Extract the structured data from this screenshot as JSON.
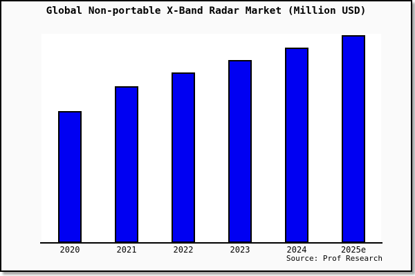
{
  "source": "Source: Prof Research",
  "colors": {
    "bar_fill": "#0000f2",
    "bar_border": "#000000",
    "plot_background": "#ffffff",
    "card_background": "#fafafa",
    "axis": "#000000",
    "text": "#000000"
  },
  "chart_data": {
    "type": "bar",
    "title": "Global Non-portable X-Band Radar Market (Million USD)",
    "categories": [
      "2020",
      "2021",
      "2022",
      "2023",
      "2024",
      "2025e"
    ],
    "values": [
      63,
      75,
      81.5,
      87.5,
      93.5,
      99.5
    ],
    "values_note": "No y-axis tick labels are shown in the chart; values are estimated relative bar heights on a 0-100 scale (2025e tallest, nearly touching plot top).",
    "xlabel": "",
    "ylabel": "",
    "ylim": [
      0,
      100
    ],
    "grid": false,
    "legend": false,
    "y_axis_visible": false
  }
}
